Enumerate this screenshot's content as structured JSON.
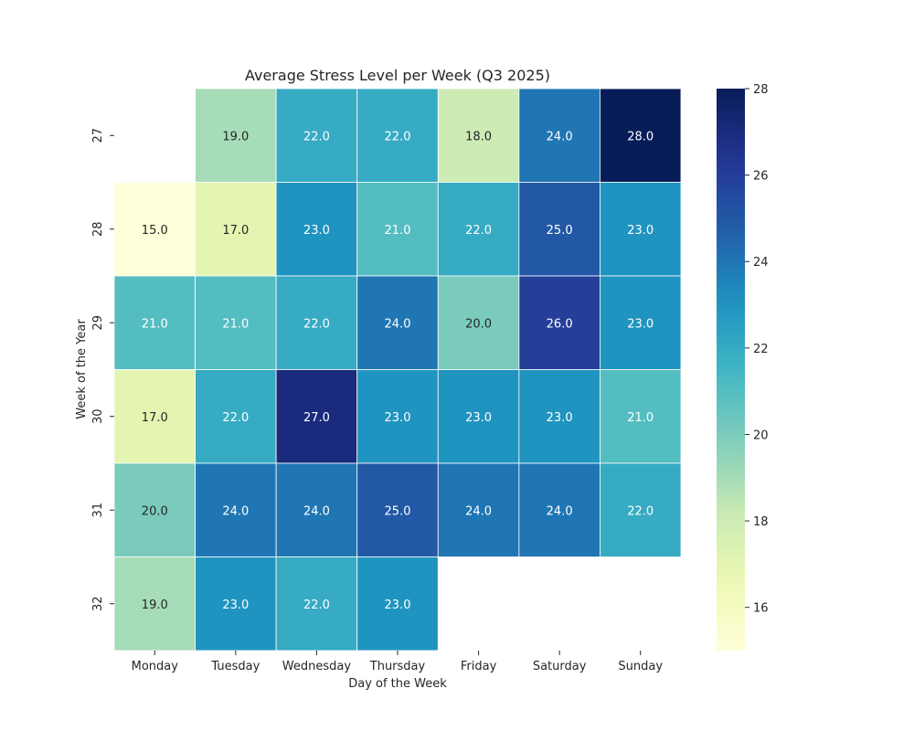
{
  "chart_data": {
    "type": "heatmap",
    "title": "Average Stress Level per Week (Q3 2025)",
    "xlabel": "Day of the Week",
    "ylabel": "Week of the Year",
    "x_categories": [
      "Monday",
      "Tuesday",
      "Wednesday",
      "Thursday",
      "Friday",
      "Saturday",
      "Sunday"
    ],
    "y_categories": [
      "27",
      "28",
      "29",
      "30",
      "31",
      "32"
    ],
    "values": [
      [
        null,
        19.0,
        22.0,
        22.0,
        18.0,
        24.0,
        28.0
      ],
      [
        15.0,
        17.0,
        23.0,
        21.0,
        22.0,
        25.0,
        23.0
      ],
      [
        21.0,
        21.0,
        22.0,
        24.0,
        20.0,
        26.0,
        23.0
      ],
      [
        17.0,
        22.0,
        27.0,
        23.0,
        23.0,
        23.0,
        21.0
      ],
      [
        20.0,
        24.0,
        24.0,
        25.0,
        24.0,
        24.0,
        22.0
      ],
      [
        19.0,
        23.0,
        22.0,
        23.0,
        null,
        null,
        null
      ]
    ],
    "value_labels": [
      [
        "",
        "19.0",
        "22.0",
        "22.0",
        "18.0",
        "24.0",
        "28.0"
      ],
      [
        "15.0",
        "17.0",
        "23.0",
        "21.0",
        "22.0",
        "25.0",
        "23.0"
      ],
      [
        "21.0",
        "21.0",
        "22.0",
        "24.0",
        "20.0",
        "26.0",
        "23.0"
      ],
      [
        "17.0",
        "22.0",
        "27.0",
        "23.0",
        "23.0",
        "23.0",
        "21.0"
      ],
      [
        "20.0",
        "24.0",
        "24.0",
        "25.0",
        "24.0",
        "24.0",
        "22.0"
      ],
      [
        "19.0",
        "23.0",
        "22.0",
        "23.0",
        "",
        "",
        ""
      ]
    ],
    "colorscale": "YlGnBu",
    "vmin": 15,
    "vmax": 28,
    "colorbar_ticks": [
      "16",
      "18",
      "20",
      "22",
      "24",
      "26",
      "28"
    ],
    "cell_borders": "white",
    "grid": false
  }
}
